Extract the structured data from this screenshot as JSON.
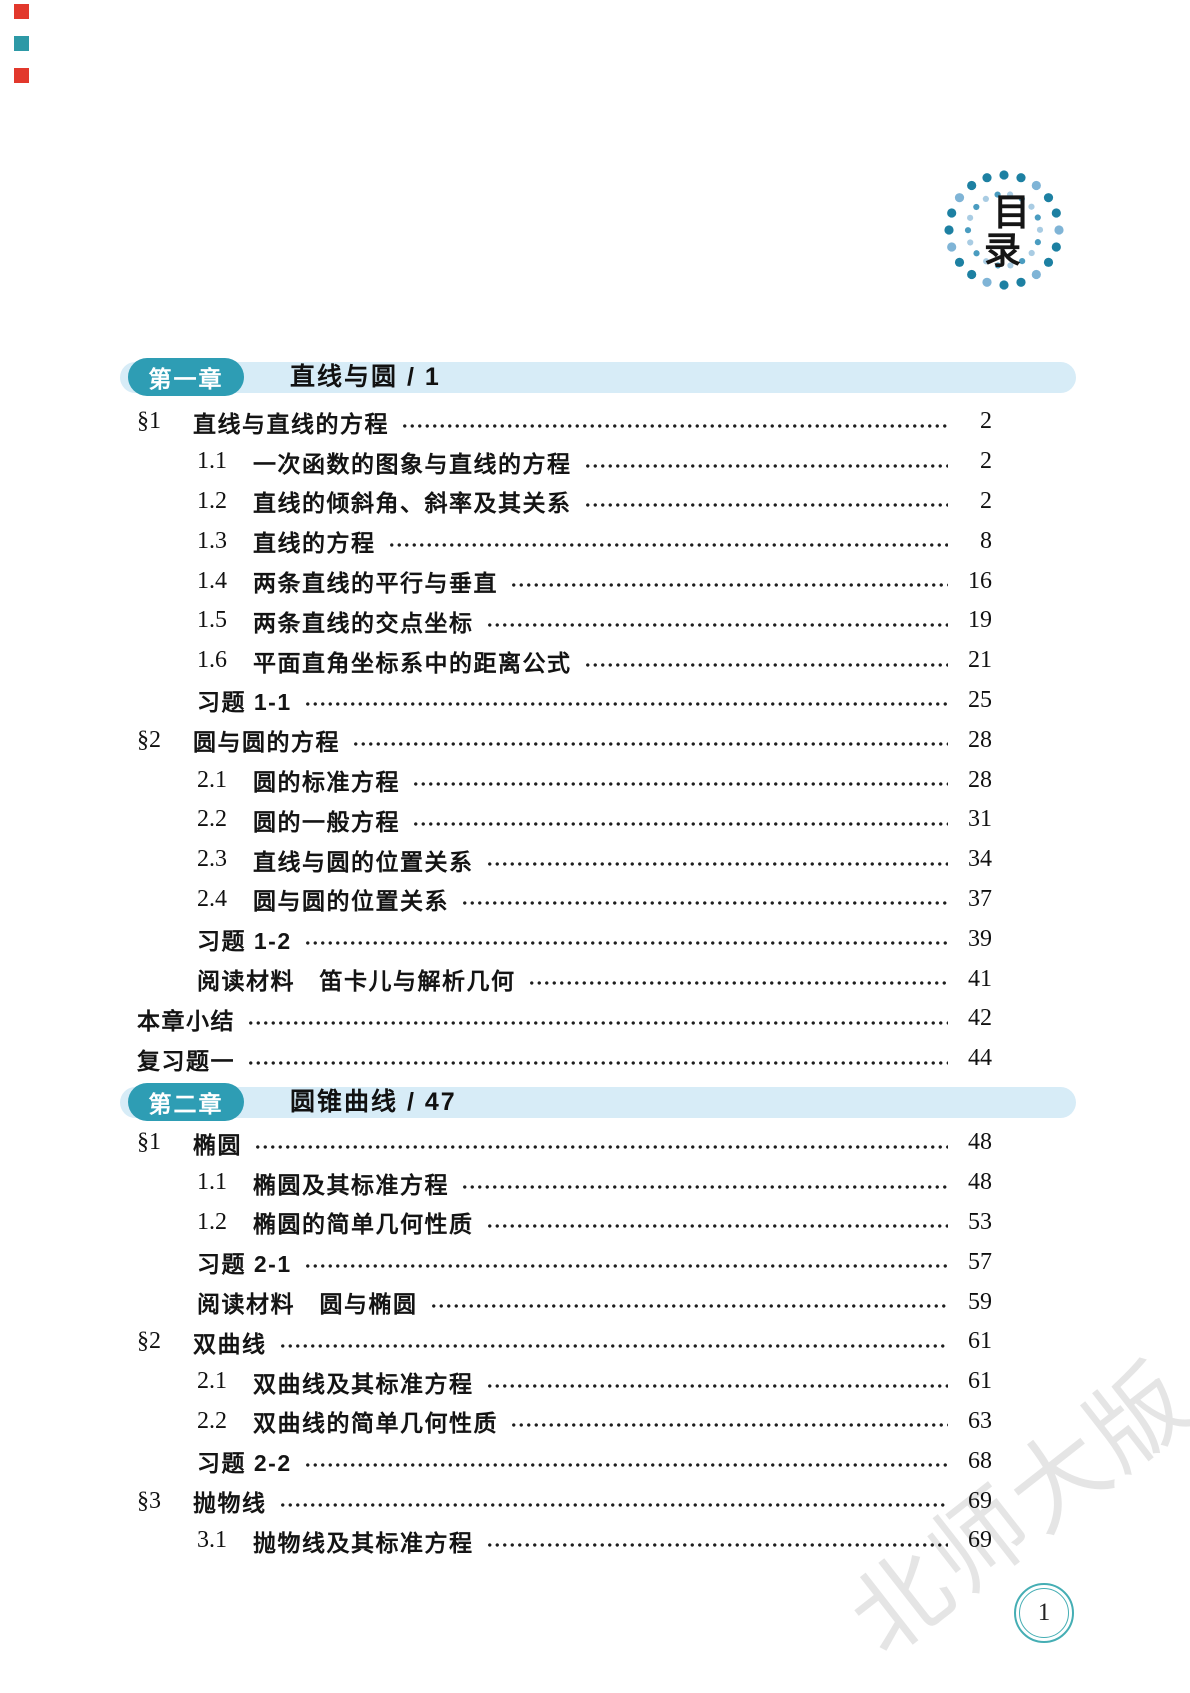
{
  "page": {
    "kind": "table-of-contents",
    "page_number": "1"
  },
  "logo": {
    "char_top": "目",
    "char_bottom": "录"
  },
  "watermark": {
    "text": "北师大版"
  },
  "colors": {
    "pill_teal": "#2E9DB4",
    "band_blue": "#D7ECF7",
    "logo_dot_dark": "#1D80A2",
    "logo_dot_light": "#7FB4D6",
    "logo_inner_dot_light": "#A9CCE3",
    "logo_inner_dot_mid": "#4A9CC0",
    "page_circle_teal": "#45AEB4",
    "corner_mark_red": "#E2382C",
    "corner_mark_teal": "#2D99A6"
  },
  "chapters": [
    {
      "badge": "第一章",
      "title": "直线与圆",
      "start_page": "1",
      "heading": "直线与圆 / 1",
      "entries": [
        {
          "level": "section",
          "num": "§1",
          "title": "直线与直线的方程",
          "page": "2"
        },
        {
          "level": "sub",
          "num": "1.1",
          "title": "一次函数的图象与直线的方程",
          "page": "2"
        },
        {
          "level": "sub",
          "num": "1.2",
          "title": "直线的倾斜角、斜率及其关系",
          "page": "2"
        },
        {
          "level": "sub",
          "num": "1.3",
          "title": "直线的方程",
          "page": "8"
        },
        {
          "level": "sub",
          "num": "1.4",
          "title": "两条直线的平行与垂直",
          "page": "16"
        },
        {
          "level": "sub",
          "num": "1.5",
          "title": "两条直线的交点坐标",
          "page": "19"
        },
        {
          "level": "sub",
          "num": "1.6",
          "title": "平面直角坐标系中的距离公式",
          "page": "21"
        },
        {
          "level": "plain",
          "num": "",
          "title": "习题 1-1",
          "page": "25"
        },
        {
          "level": "section",
          "num": "§2",
          "title": "圆与圆的方程",
          "page": "28"
        },
        {
          "level": "sub",
          "num": "2.1",
          "title": "圆的标准方程",
          "page": "28"
        },
        {
          "level": "sub",
          "num": "2.2",
          "title": "圆的一般方程",
          "page": "31"
        },
        {
          "level": "sub",
          "num": "2.3",
          "title": "直线与圆的位置关系",
          "page": "34"
        },
        {
          "level": "sub",
          "num": "2.4",
          "title": "圆与圆的位置关系",
          "page": "37"
        },
        {
          "level": "plain",
          "num": "",
          "title": "习题 1-2",
          "page": "39"
        },
        {
          "level": "plain",
          "num": "",
          "title": "阅读材料　笛卡儿与解析几何",
          "page": "41"
        },
        {
          "level": "top",
          "num": "",
          "title": "本章小结",
          "page": "42"
        },
        {
          "level": "top",
          "num": "",
          "title": "复习题一",
          "page": "44"
        }
      ]
    },
    {
      "badge": "第二章",
      "title": "圆锥曲线",
      "start_page": "47",
      "heading": "圆锥曲线 / 47",
      "entries": [
        {
          "level": "section",
          "num": "§1",
          "title": "椭圆",
          "page": "48"
        },
        {
          "level": "sub",
          "num": "1.1",
          "title": "椭圆及其标准方程",
          "page": "48"
        },
        {
          "level": "sub",
          "num": "1.2",
          "title": "椭圆的简单几何性质",
          "page": "53"
        },
        {
          "level": "plain",
          "num": "",
          "title": "习题 2-1",
          "page": "57"
        },
        {
          "level": "plain",
          "num": "",
          "title": "阅读材料　圆与椭圆",
          "page": "59"
        },
        {
          "level": "section",
          "num": "§2",
          "title": "双曲线",
          "page": "61"
        },
        {
          "level": "sub",
          "num": "2.1",
          "title": "双曲线及其标准方程",
          "page": "61"
        },
        {
          "level": "sub",
          "num": "2.2",
          "title": "双曲线的简单几何性质",
          "page": "63"
        },
        {
          "level": "plain",
          "num": "",
          "title": "习题 2-2",
          "page": "68"
        },
        {
          "level": "section",
          "num": "§3",
          "title": "抛物线",
          "page": "69"
        },
        {
          "level": "sub",
          "num": "3.1",
          "title": "抛物线及其标准方程",
          "page": "69"
        }
      ]
    }
  ]
}
